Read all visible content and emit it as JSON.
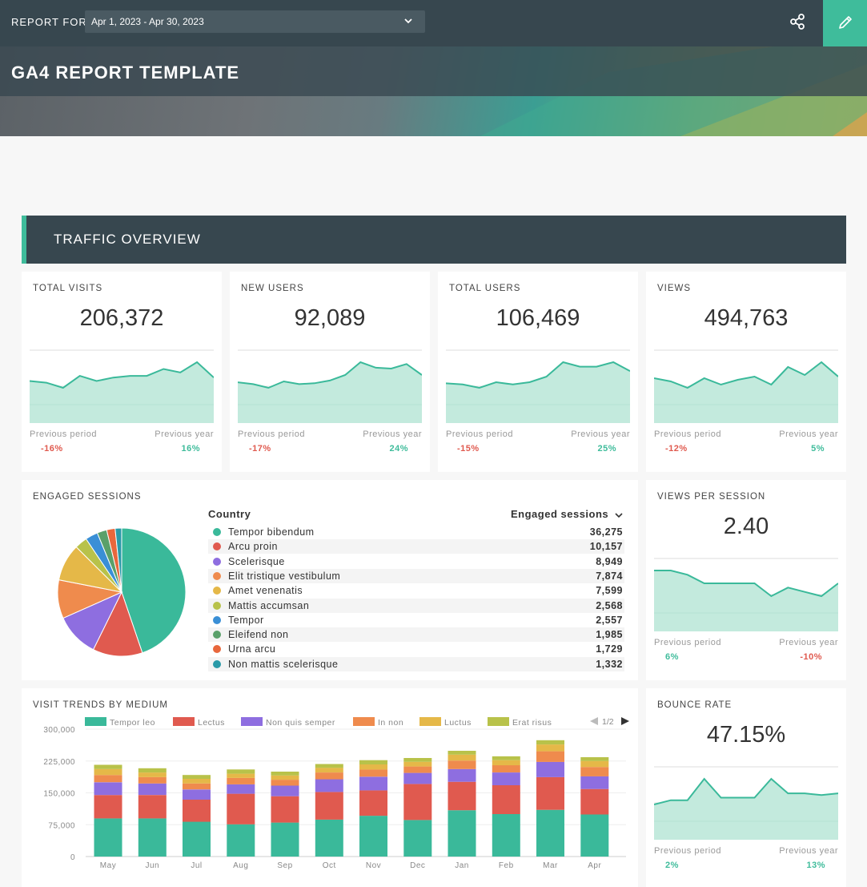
{
  "header": {
    "report_for_label": "REPORT FOR",
    "date_range": "Apr 1, 2023 - Apr 30, 2023",
    "title": "GA4 REPORT TEMPLATE",
    "icons": {
      "share": "share-icon",
      "edit": "pencil-icon",
      "dropdown": "chevron-down-icon"
    },
    "colors": {
      "bar": "#37474f",
      "accent": "#3fbc9b"
    }
  },
  "section": {
    "title": "TRAFFIC OVERVIEW"
  },
  "comparison_labels": {
    "previous_period": "Previous period",
    "previous_year": "Previous year"
  },
  "kpis": [
    {
      "label": "TOTAL VISITS",
      "value": "206,372",
      "prev_period": "-16%",
      "prev_year": "16%",
      "trend": [
        63,
        62,
        59,
        66,
        63,
        65,
        66,
        66,
        70,
        68,
        74,
        65
      ]
    },
    {
      "label": "NEW USERS",
      "value": "92,089",
      "prev_period": "-17%",
      "prev_year": "24%",
      "trend": [
        64,
        62,
        58,
        65,
        62,
        63,
        66,
        72,
        86,
        80,
        79,
        84,
        72
      ]
    },
    {
      "label": "TOTAL USERS",
      "value": "106,469",
      "prev_period": "-15%",
      "prev_year": "25%",
      "trend": [
        55,
        54,
        51,
        56,
        54,
        56,
        61,
        74,
        70,
        70,
        74,
        66
      ]
    },
    {
      "label": "VIEWS",
      "value": "494,763",
      "prev_period": "-12%",
      "prev_year": "5%",
      "trend": [
        82,
        80,
        76,
        82,
        78,
        81,
        83,
        78,
        89,
        84,
        92,
        83
      ]
    },
    {
      "label": "VIEWS PER SESSION",
      "value": "2.40",
      "prev_period": "6%",
      "prev_year": "-10%",
      "trend": [
        2.43,
        2.43,
        2.42,
        2.4,
        2.4,
        2.4,
        2.4,
        2.37,
        2.39,
        2.38,
        2.37,
        2.4
      ]
    },
    {
      "label": "BOUNCE RATE",
      "value": "47.15%",
      "prev_period": "2%",
      "prev_year": "13%",
      "trend": [
        45.5,
        46.0,
        46.0,
        48.5,
        46.3,
        46.3,
        46.3,
        48.5,
        46.8,
        46.8,
        46.6,
        46.8
      ]
    }
  ],
  "engaged_sessions": {
    "label": "ENGAGED SESSIONS",
    "col_country": "Country",
    "col_metric": "Engaged sessions",
    "sort_icon": "chevron-down-icon",
    "rows": [
      {
        "name": "Tempor bibendum",
        "value": "36,275",
        "num": 36275,
        "color": "#3ab99a"
      },
      {
        "name": "Arcu proin",
        "value": "10,157",
        "num": 10157,
        "color": "#e05a4f"
      },
      {
        "name": "Scelerisque",
        "value": "8,949",
        "num": 8949,
        "color": "#8e6ee0"
      },
      {
        "name": "Elit tristique vestibulum",
        "value": "7,874",
        "num": 7874,
        "color": "#ef8b4d"
      },
      {
        "name": "Amet venenatis",
        "value": "7,599",
        "num": 7599,
        "color": "#e5b848"
      },
      {
        "name": "Mattis accumsan",
        "value": "2,568",
        "num": 2568,
        "color": "#b8c24a"
      },
      {
        "name": "Tempor",
        "value": "2,557",
        "num": 2557,
        "color": "#3a8fd6"
      },
      {
        "name": "Eleifend non",
        "value": "1,985",
        "num": 1985,
        "color": "#5aa06a"
      },
      {
        "name": "Urna arcu",
        "value": "1,729",
        "num": 1729,
        "color": "#e8673c"
      },
      {
        "name": "Non mattis scelerisque",
        "value": "1,332",
        "num": 1332,
        "color": "#2a9aa8"
      }
    ]
  },
  "chart_data": {
    "type": "bar",
    "stacked": true,
    "title": "VISIT TRENDS BY MEDIUM",
    "legend_page": "1/2",
    "categories": [
      "May",
      "Jun",
      "Jul",
      "Aug",
      "Sep",
      "Oct",
      "Nov",
      "Dec",
      "Jan",
      "Feb",
      "Mar",
      "Apr"
    ],
    "y_ticks": [
      "300,000",
      "225,000",
      "150,000",
      "75,000",
      "0"
    ],
    "ylim": [
      0,
      300000
    ],
    "series": [
      {
        "name": "Tempor leo",
        "color": "#3ab99a",
        "values": [
          90000,
          90000,
          82000,
          76000,
          80000,
          87000,
          96000,
          86000,
          109000,
          100000,
          110000,
          99000
        ]
      },
      {
        "name": "Lectus",
        "color": "#e05a4f",
        "values": [
          55000,
          55000,
          52000,
          72000,
          62000,
          65000,
          60000,
          85000,
          67000,
          68000,
          77000,
          60000
        ]
      },
      {
        "name": "Non quis semper",
        "color": "#8e6ee0",
        "values": [
          30000,
          27000,
          24000,
          22000,
          25000,
          30000,
          32000,
          26000,
          30000,
          30000,
          36000,
          30000
        ]
      },
      {
        "name": "In non",
        "color": "#ef8b4d",
        "values": [
          17000,
          15000,
          14000,
          15000,
          14000,
          16000,
          17000,
          15000,
          20000,
          17000,
          25000,
          22000
        ]
      },
      {
        "name": "Luctus",
        "color": "#e5b848",
        "values": [
          14000,
          11000,
          11000,
          10000,
          10000,
          11000,
          12000,
          11000,
          14000,
          12000,
          16000,
          14000
        ]
      },
      {
        "name": "Erat risus",
        "color": "#b8c24a",
        "values": [
          10000,
          10000,
          9000,
          10000,
          9000,
          9000,
          10000,
          9000,
          9000,
          9000,
          10000,
          9000
        ]
      }
    ]
  }
}
